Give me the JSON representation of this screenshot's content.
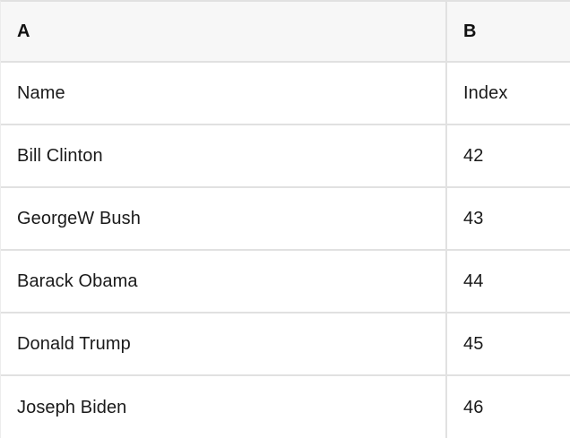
{
  "spreadsheet": {
    "columns": [
      "A",
      "B"
    ],
    "rows": [
      {
        "a": "Name",
        "b": "Index"
      },
      {
        "a": "Bill Clinton",
        "b": "42"
      },
      {
        "a": "GeorgeW Bush",
        "b": "43"
      },
      {
        "a": "Barack Obama",
        "b": "44"
      },
      {
        "a": "Donald Trump",
        "b": "45"
      },
      {
        "a": "Joseph Biden",
        "b": "46"
      }
    ],
    "colors": {
      "header_bg": "#f7f7f7",
      "cell_bg": "#ffffff",
      "border": "#e1e1e1",
      "text": "#1a1a1a"
    }
  }
}
